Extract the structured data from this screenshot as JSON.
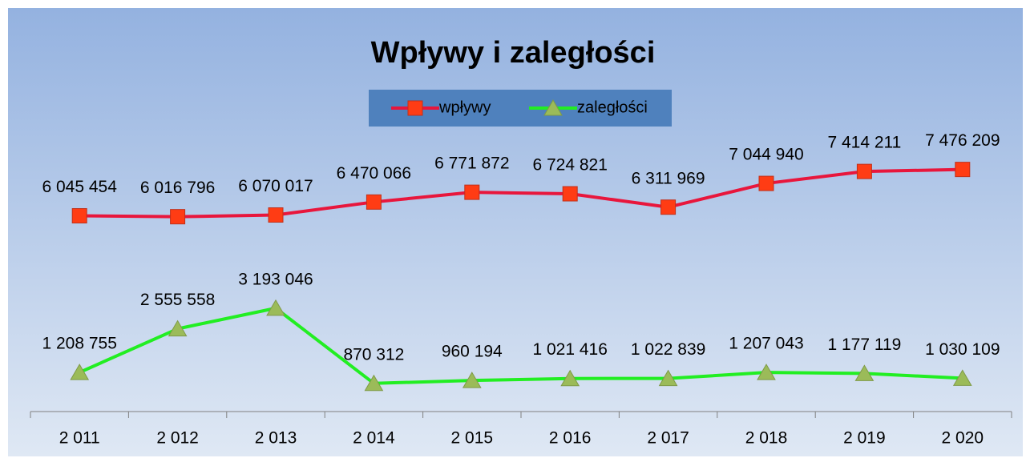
{
  "chart_data": {
    "type": "line",
    "title": "Wpływy i zaległości",
    "categories": [
      "2 011",
      "2 012",
      "2 013",
      "2 014",
      "2 015",
      "2 016",
      "2 017",
      "2 018",
      "2 019",
      "2 020"
    ],
    "series": [
      {
        "name": "wpływy",
        "color": "#e8163c",
        "marker": "square",
        "marker_color": "#ff3c14",
        "values": [
          6045454,
          6016796,
          6070017,
          6470066,
          6771872,
          6724821,
          6311969,
          7044940,
          7414211,
          7476209
        ],
        "value_labels": [
          "6 045 454",
          "6 016 796",
          "6 070 017",
          "6 470 066",
          "6 771 872",
          "6 724 821",
          "6 311 969",
          "7 044 940",
          "7 414 211",
          "7 476 209"
        ]
      },
      {
        "name": "zaległości",
        "color": "#22ee22",
        "marker": "triangle",
        "marker_color": "#9bbb59",
        "values": [
          1208755,
          2555558,
          3193046,
          870312,
          960194,
          1021416,
          1022839,
          1207043,
          1177119,
          1030109
        ],
        "value_labels": [
          "1 208 755",
          "2 555 558",
          "3 193 046",
          "870 312",
          "960 194",
          "1 021 416",
          "1 022 839",
          "1 207 043",
          "1 177 119",
          "1 030 109"
        ]
      }
    ],
    "ylim": [
      0,
      9000000
    ],
    "legend": "top"
  }
}
